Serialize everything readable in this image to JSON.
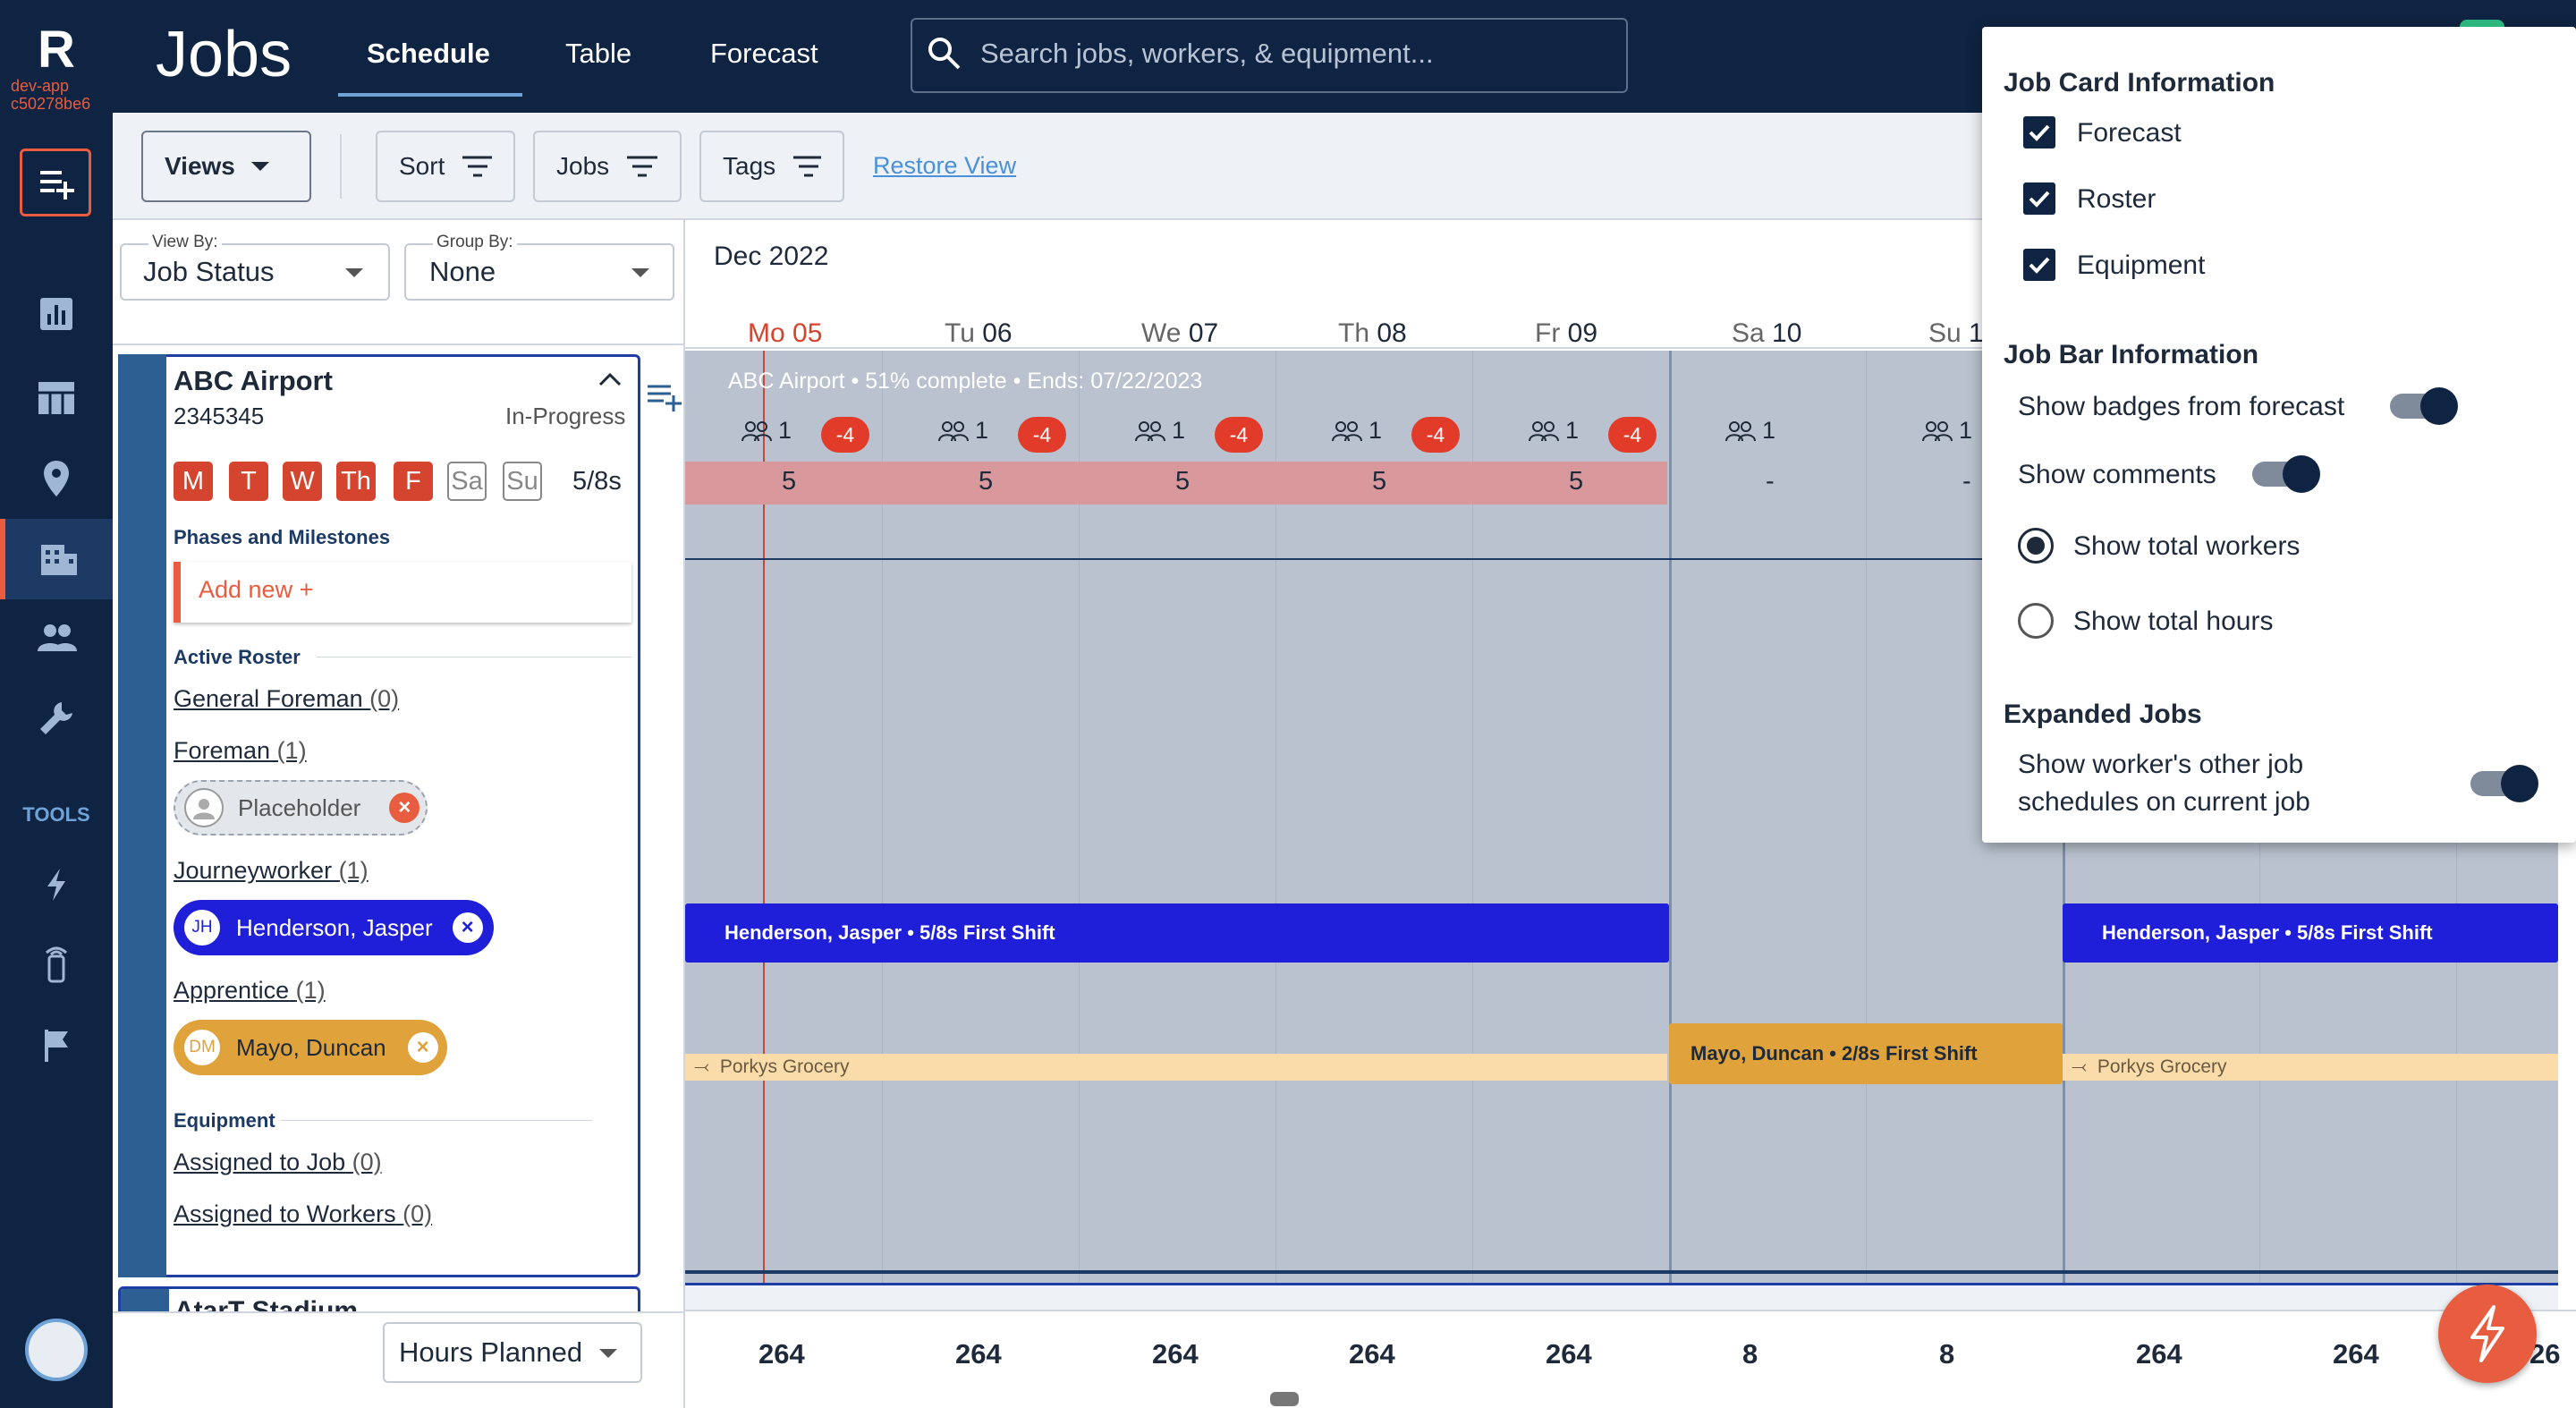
{
  "app": {
    "logo": "R",
    "env_line1": "dev-app",
    "env_line2": "c50278be6",
    "title": "Jobs",
    "tabs": [
      "Schedule",
      "Table",
      "Forecast"
    ],
    "search_placeholder": "Search jobs, workers, & equipment...",
    "tools_label": "TOOLS"
  },
  "toolbar": {
    "views": "Views",
    "sort": "Sort",
    "jobs": "Jobs",
    "tags": "Tags",
    "restore": "Restore View"
  },
  "filters": {
    "view_by_label": "View By:",
    "view_by_value": "Job Status",
    "group_by_label": "Group By:",
    "group_by_value": "None"
  },
  "job": {
    "name": "ABC Airport",
    "number": "2345345",
    "status": "In-Progress",
    "days_on": [
      "M",
      "T",
      "W",
      "Th",
      "F"
    ],
    "days_off": [
      "Sa",
      "Su"
    ],
    "shift": "5/8s",
    "phases_title": "Phases and Milestones",
    "add_new": "Add new +",
    "roster_title": "Active Roster",
    "roles": {
      "general_foreman": "General Foreman",
      "general_foreman_count": "(0)",
      "foreman": "Foreman",
      "foreman_count": "(1)",
      "journeyworker": "Journeyworker",
      "journeyworker_count": "(1)",
      "apprentice": "Apprentice",
      "apprentice_count": "(1)"
    },
    "placeholder": "Placeholder",
    "journey_initials": "JH",
    "journey_name": "Henderson, Jasper",
    "apprentice_initials": "DM",
    "apprentice_name": "Mayo, Duncan",
    "equipment_title": "Equipment",
    "assigned_job": "Assigned to Job",
    "assigned_job_count": "(0)",
    "assigned_workers": "Assigned to Workers",
    "assigned_workers_count": "(0)",
    "next_job": "AtarT Stadium"
  },
  "calendar": {
    "month": "Dec 2022",
    "days": [
      {
        "dow": "Mo",
        "num": "05"
      },
      {
        "dow": "Tu",
        "num": "06"
      },
      {
        "dow": "We",
        "num": "07"
      },
      {
        "dow": "Th",
        "num": "08"
      },
      {
        "dow": "Fr",
        "num": "09"
      },
      {
        "dow": "Sa",
        "num": "10"
      },
      {
        "dow": "Su",
        "num": "1"
      }
    ],
    "job_bar_label": "ABC Airport • 51% complete • Ends: 07/22/2023",
    "workers": [
      "1",
      "1",
      "1",
      "1",
      "1",
      "1",
      "1"
    ],
    "badges": [
      "-4",
      "-4",
      "-4",
      "-4",
      "-4"
    ],
    "hours": [
      "5",
      "5",
      "5",
      "5",
      "5",
      "-",
      "-"
    ],
    "bar_henderson_1": "Henderson, Jasper • 5/8s First Shift",
    "bar_henderson_2": "Henderson, Jasper • 5/8s First Shift",
    "bar_mayo": "Mayo, Duncan • 2/8s First Shift",
    "transfer_1": "Porkys Grocery",
    "transfer_2": "Porkys Grocery"
  },
  "footer": {
    "metric": "Hours Planned",
    "totals": [
      "264",
      "264",
      "264",
      "264",
      "264",
      "8",
      "8",
      "264",
      "264",
      "26"
    ]
  },
  "popover": {
    "card_title": "Job Card Information",
    "card_forecast": "Forecast",
    "card_roster": "Roster",
    "card_equipment": "Equipment",
    "bar_title": "Job Bar Information",
    "show_badges": "Show badges from forecast",
    "show_comments": "Show comments",
    "show_total_workers": "Show total workers",
    "show_total_hours": "Show total hours",
    "expanded_title": "Expanded Jobs",
    "expanded_line1": "Show worker's other job",
    "expanded_line2": "schedules on current job"
  },
  "colors": {
    "navy": "#0f2442",
    "accent": "#e85c3f",
    "journeyworker": "#1f1fd9",
    "apprentice": "#e0a23a"
  }
}
